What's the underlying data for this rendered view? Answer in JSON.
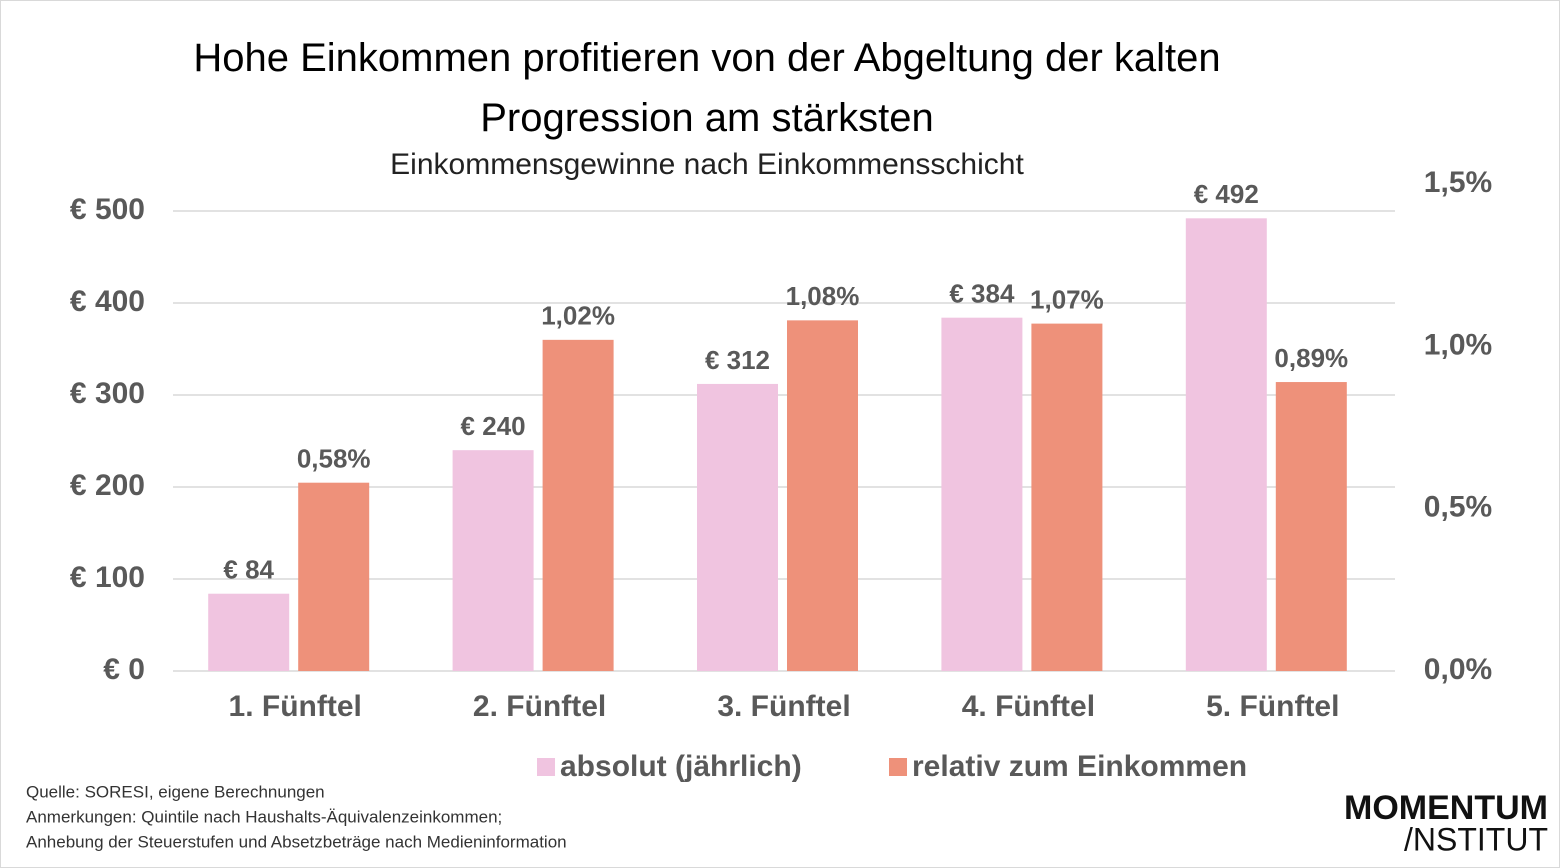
{
  "chart_data": {
    "type": "bar",
    "title": "Hohe Einkommen profitieren von der Abgeltung der kalten Progression am stärksten",
    "subtitle": "Einkommensgewinne nach Einkommensschicht",
    "categories": [
      "1. Fünftel",
      "2. Fünftel",
      "3. Fünftel",
      "4. Fünftel",
      "5. Fünftel"
    ],
    "series": [
      {
        "name": "absolut (jährlich)",
        "color": "#f0c4e0",
        "values": [
          84,
          240,
          312,
          384,
          492
        ],
        "value_labels": [
          "€ 84",
          "€ 240",
          "€ 312",
          "€ 384",
          "€ 492"
        ]
      },
      {
        "name": "relativ zum Einkommen",
        "color": "#ee917a",
        "axis": "y2",
        "values": [
          0.58,
          1.02,
          1.08,
          1.07,
          0.89
        ],
        "value_labels": [
          "0,58%",
          "1,02%",
          "1,08%",
          "1,07%",
          "0,89%"
        ]
      }
    ],
    "ylim": [
      0,
      529.3
    ],
    "yticks": [
      {
        "value": 0,
        "label": "€ 0"
      },
      {
        "value": 100,
        "label": "€ 100"
      },
      {
        "value": 200,
        "label": "€ 200"
      },
      {
        "value": 300,
        "label": "€ 300"
      },
      {
        "value": 400,
        "label": "€ 400"
      },
      {
        "value": 500,
        "label": "€ 500"
      }
    ],
    "y2lim": [
      0,
      1.5
    ],
    "y2ticks": [
      {
        "value": 0,
        "label": "0,0%"
      },
      {
        "value": 0.5,
        "label": "0,5%"
      },
      {
        "value": 1,
        "label": "1,0%"
      },
      {
        "value": 1.5,
        "label": "1,5%"
      }
    ],
    "grid": true,
    "legend": "bottom"
  },
  "footer": {
    "source": "Quelle: SORESI, eigene Berechnungen",
    "notes": [
      "Anmerkungen: Quintile nach Haushalts-Äquivalenzeinkommen;",
      "Anhebung der Steuerstufen und Absetzbeträge nach Medieninformation"
    ]
  },
  "logo": {
    "line1": "MOMENTUM",
    "line2": "/NSTITUT"
  }
}
